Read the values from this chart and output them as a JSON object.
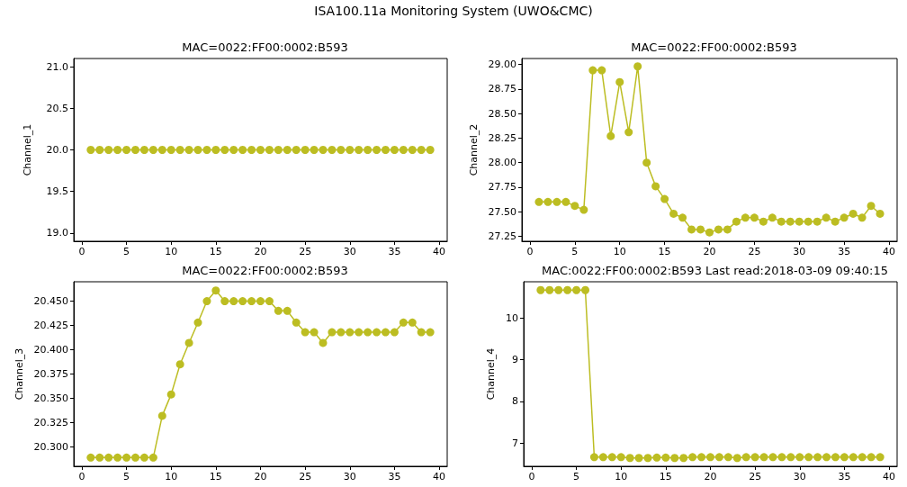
{
  "chart_data": [
    {
      "type": "line",
      "title": "MAC=0022:FF00:0002:B593",
      "ylabel": "Channel_1",
      "annotations": [
        "ISA100.11a Monitoring System (UWO&CMC)"
      ],
      "marker": "circle",
      "color": "#bcbd22",
      "x": [
        1,
        2,
        3,
        4,
        5,
        6,
        7,
        8,
        9,
        10,
        11,
        12,
        13,
        14,
        15,
        16,
        17,
        18,
        19,
        20,
        21,
        22,
        23,
        24,
        25,
        26,
        27,
        28,
        29,
        30,
        31,
        32,
        33,
        34,
        35,
        36,
        37,
        38,
        39
      ],
      "values": [
        20,
        20,
        20,
        20,
        20,
        20,
        20,
        20,
        20,
        20,
        20,
        20,
        20,
        20,
        20,
        20,
        20,
        20,
        20,
        20,
        20,
        20,
        20,
        20,
        20,
        20,
        20,
        20,
        20,
        20,
        20,
        20,
        20,
        20,
        20,
        20,
        20,
        20,
        20
      ],
      "xlim": [
        -0.9,
        40.9
      ],
      "xticks": [
        0,
        5,
        10,
        15,
        20,
        25,
        30,
        35,
        40
      ],
      "ylim": [
        18.9,
        21.1
      ],
      "yticks": [
        {
          "value": 19,
          "label": "19.0"
        },
        19.5,
        {
          "value": 20,
          "label": "20.0"
        },
        20.5,
        {
          "value": 21,
          "label": "21.0"
        }
      ]
    },
    {
      "type": "line",
      "title": "MAC=0022:FF00:0002:B593",
      "ylabel": "Channel_2",
      "marker": "circle",
      "color": "#bcbd22",
      "x": [
        1,
        2,
        3,
        4,
        5,
        6,
        7,
        8,
        9,
        10,
        11,
        12,
        13,
        14,
        15,
        16,
        17,
        18,
        19,
        20,
        21,
        22,
        23,
        24,
        25,
        26,
        27,
        28,
        29,
        30,
        31,
        32,
        33,
        34,
        35,
        36,
        37,
        38,
        39
      ],
      "values": [
        27.6,
        27.6,
        27.6,
        27.6,
        27.56,
        27.52,
        28.94,
        28.94,
        28.27,
        28.82,
        28.31,
        28.98,
        28.0,
        27.76,
        27.63,
        27.48,
        27.44,
        27.32,
        27.32,
        27.29,
        27.32,
        27.32,
        27.4,
        27.44,
        27.44,
        27.4,
        27.44,
        27.4,
        27.4,
        27.4,
        27.4,
        27.4,
        27.44,
        27.4,
        27.44,
        27.48,
        27.44,
        27.56,
        27.48
      ],
      "xlim": [
        -0.9,
        40.9
      ],
      "xticks": [
        0,
        5,
        10,
        15,
        20,
        25,
        30,
        35,
        40
      ],
      "ylim": [
        27.2,
        29.06
      ],
      "yticks": [
        27.25,
        {
          "value": 27.5,
          "label": "27.50"
        },
        27.75,
        {
          "value": 28,
          "label": "28.00"
        },
        28.25,
        {
          "value": 28.5,
          "label": "28.50"
        },
        28.75,
        {
          "value": 29,
          "label": "29.00"
        }
      ]
    },
    {
      "type": "line",
      "title": "MAC=0022:FF00:0002:B593",
      "ylabel": "Channel_3",
      "marker": "circle",
      "color": "#bcbd22",
      "x": [
        1,
        2,
        3,
        4,
        5,
        6,
        7,
        8,
        9,
        10,
        11,
        12,
        13,
        14,
        15,
        16,
        17,
        18,
        19,
        20,
        21,
        22,
        23,
        24,
        25,
        26,
        27,
        28,
        29,
        30,
        31,
        32,
        33,
        34,
        35,
        36,
        37,
        38,
        39
      ],
      "values": [
        20.289,
        20.289,
        20.289,
        20.289,
        20.289,
        20.289,
        20.289,
        20.289,
        20.332,
        20.354,
        20.385,
        20.407,
        20.428,
        20.45,
        20.461,
        20.45,
        20.45,
        20.45,
        20.45,
        20.45,
        20.45,
        20.44,
        20.44,
        20.428,
        20.418,
        20.418,
        20.407,
        20.418,
        20.418,
        20.418,
        20.418,
        20.418,
        20.418,
        20.418,
        20.418,
        20.428,
        20.428,
        20.418,
        20.418
      ],
      "xlim": [
        -0.9,
        40.9
      ],
      "xticks": [
        0,
        5,
        10,
        15,
        20,
        25,
        30,
        35,
        40
      ],
      "ylim": [
        20.28,
        20.47
      ],
      "yticks": [
        {
          "value": 20.3,
          "label": "20.300"
        },
        20.325,
        {
          "value": 20.35,
          "label": "20.350"
        },
        20.375,
        {
          "value": 20.4,
          "label": "20.400"
        },
        20.425,
        {
          "value": 20.45,
          "label": "20.450"
        }
      ]
    },
    {
      "type": "line",
      "title": "MAC:0022:FF00:0002:B593 Last read:2018-03-09 09:40:15",
      "ylabel": "Channel_4",
      "marker": "circle",
      "color": "#bcbd22",
      "x": [
        1,
        2,
        3,
        4,
        5,
        6,
        7,
        8,
        9,
        10,
        11,
        12,
        13,
        14,
        15,
        16,
        17,
        18,
        19,
        20,
        21,
        22,
        23,
        24,
        25,
        26,
        27,
        28,
        29,
        30,
        31,
        32,
        33,
        34,
        35,
        36,
        37,
        38,
        39
      ],
      "values": [
        10.67,
        10.67,
        10.67,
        10.67,
        10.67,
        10.67,
        6.66,
        6.66,
        6.66,
        6.66,
        6.64,
        6.64,
        6.64,
        6.65,
        6.65,
        6.64,
        6.64,
        6.66,
        6.66,
        6.66,
        6.66,
        6.66,
        6.64,
        6.66,
        6.66,
        6.66,
        6.66,
        6.66,
        6.66,
        6.66,
        6.66,
        6.66,
        6.66,
        6.66,
        6.66,
        6.66,
        6.66,
        6.66,
        6.66
      ],
      "xlim": [
        -0.9,
        40.9
      ],
      "xticks": [
        0,
        5,
        10,
        15,
        20,
        25,
        30,
        35,
        40
      ],
      "ylim": [
        6.44,
        10.87
      ],
      "yticks": [
        7,
        8,
        9,
        10
      ]
    }
  ]
}
